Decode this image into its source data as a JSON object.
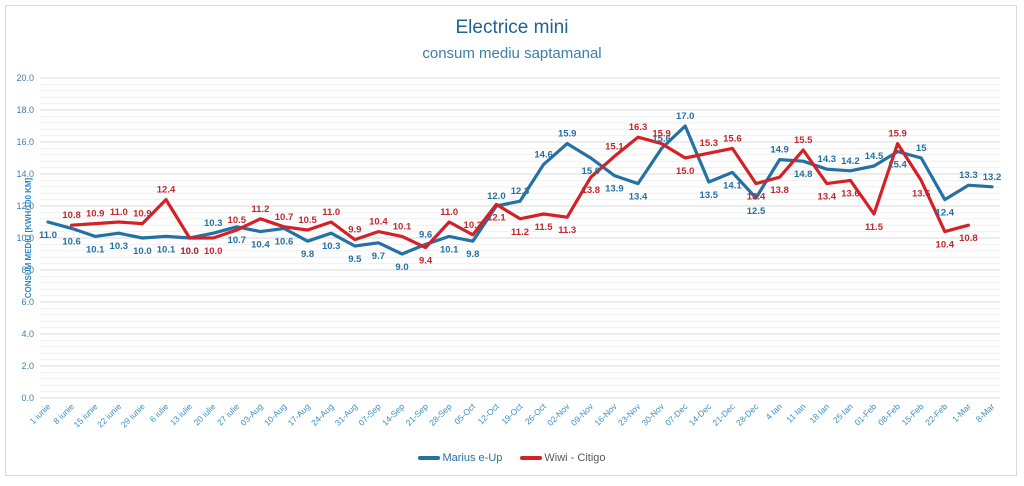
{
  "chart_data": {
    "type": "line",
    "title": "Electrice mini",
    "subtitle": "consum mediu saptamanal",
    "xlabel": "",
    "ylabel": "CONSUM MEDIU [KWH/100 KM]",
    "ylim": [
      0,
      20
    ],
    "yticks": [
      "0.0",
      "2.0",
      "4.0",
      "6.0",
      "8.0",
      "10.0",
      "12.0",
      "14.0",
      "16.0",
      "18.0",
      "20.0"
    ],
    "grid": true,
    "legend_position": "bottom",
    "categories": [
      "1 iunie",
      "8 iunie",
      "15 iunie",
      "22 iunie",
      "29 iunie",
      "6 iulie",
      "13 iulie",
      "20 iulie",
      "27 iulie",
      "03-Aug",
      "10-Aug",
      "17-Aug",
      "24-Aug",
      "31-Aug",
      "07-Sep",
      "14-Sep",
      "21-Sep",
      "28-Sep",
      "05-Oct",
      "12-Oct",
      "19-Oct",
      "26-Oct",
      "02-Nov",
      "09-Nov",
      "16-Nov",
      "23-Nov",
      "30-Nov",
      "07-Dec",
      "14-Dec",
      "21-Dec",
      "28-Dec",
      "4 Ian",
      "11 Ian",
      "18 Ian",
      "25 Ian",
      "01-Feb",
      "08-Feb",
      "15-Feb",
      "22-Feb",
      "1-Mar",
      "8-Mar"
    ],
    "series": [
      {
        "name": "Marius e-Up",
        "color": "#2471a3",
        "values": [
          11.0,
          10.6,
          10.1,
          10.3,
          10.0,
          10.1,
          10.0,
          10.3,
          10.7,
          10.4,
          10.6,
          9.8,
          10.3,
          9.5,
          9.7,
          9.0,
          9.6,
          10.1,
          9.8,
          12.0,
          12.3,
          14.6,
          15.9,
          15.0,
          13.9,
          13.4,
          15.6,
          17.0,
          13.5,
          14.1,
          12.5,
          14.9,
          14.8,
          14.3,
          14.2,
          14.5,
          15.4,
          15,
          12.4,
          13.3,
          13.2
        ],
        "labels": [
          "11.0",
          "10.6",
          "10.1",
          "10.3",
          "10.0",
          "10.1",
          "10.0",
          "10.3",
          "10.7",
          "10.4",
          "10.6",
          "9.8",
          "10.3",
          "9.5",
          "9.7",
          "9.0",
          "9.6",
          "10.1",
          "9.8",
          "12.0",
          "12.3",
          "14.6",
          "15.9",
          "15.0",
          "13.9",
          "13.4",
          "15.6",
          "17.0",
          "13.5",
          "14.1",
          "12.5",
          "14.9",
          "14.8",
          "14.3",
          "14.2",
          "14.5",
          "15.4",
          "15",
          "12.4",
          "13.3",
          "13.2"
        ]
      },
      {
        "name": "Wiwi - Citigo",
        "color": "#d42027",
        "values": [
          null,
          10.8,
          10.9,
          11.0,
          10.9,
          12.4,
          10.0,
          10.0,
          10.5,
          11.2,
          10.7,
          10.5,
          11.0,
          9.9,
          10.4,
          10.1,
          9.4,
          11.0,
          10.2,
          12.1,
          11.2,
          11.5,
          11.3,
          13.8,
          15.1,
          16.3,
          15.9,
          15.0,
          15.3,
          15.6,
          13.4,
          13.8,
          15.5,
          13.4,
          13.6,
          11.5,
          15.9,
          13.6,
          10.4,
          10.8,
          null
        ],
        "labels": [
          null,
          "10.8",
          "10.9",
          "11.0",
          "10.9",
          "12.4",
          "10.0",
          "10.0",
          "10.5",
          "11.2",
          "10.7",
          "10.5",
          "11.0",
          "9.9",
          "10.4",
          "10.1",
          "9.4",
          "11.0",
          "10.2",
          "12.1",
          "11.2",
          "11.5",
          "11.3",
          "13.8",
          "15.1",
          "16.3",
          "15.9",
          "15.0",
          "15.3",
          "15.6",
          "13.4",
          "13.8",
          "15.5",
          "13.4",
          "13.6",
          "11.5",
          "15.9",
          "13.6",
          "10.4",
          "10.8",
          null
        ]
      }
    ]
  }
}
